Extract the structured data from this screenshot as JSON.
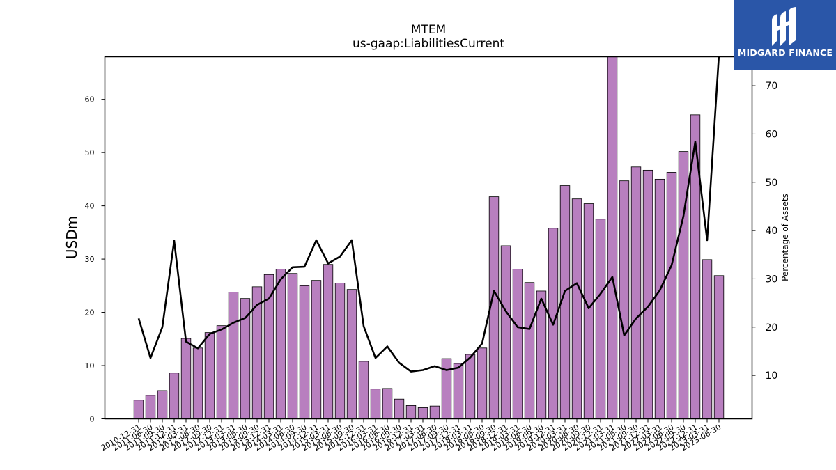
{
  "brand": {
    "name": "MIDGARD FINANCE",
    "logo_icon": "midgard-logo-icon",
    "color": "#2a56a8"
  },
  "chart_data": {
    "type": "bar",
    "title": "MTEM",
    "subtitle": "us-gaap:LiabilitiesCurrent",
    "ylabel": "USDm",
    "y2label": "Percentage of Assets",
    "ylim": [
      0,
      68
    ],
    "y2lim": [
      1,
      76
    ],
    "yticks": [
      0,
      10,
      20,
      30,
      40,
      50,
      60
    ],
    "y2ticks": [
      10,
      20,
      30,
      40,
      50,
      60,
      70
    ],
    "bar_color": "#b87fbf",
    "line_color": "#000000",
    "categories": [
      "2010-12-31",
      "2011-06-30",
      "2011-09-30",
      "2011-12-31",
      "2012-03-31",
      "2012-06-30",
      "2012-09-30",
      "2012-12-31",
      "2013-03-31",
      "2013-06-30",
      "2013-09-30",
      "2013-12-31",
      "2014-03-31",
      "2014-06-30",
      "2014-09-30",
      "2014-12-31",
      "2015-03-31",
      "2015-06-30",
      "2015-09-30",
      "2015-12-31",
      "2016-03-31",
      "2016-06-30",
      "2016-09-30",
      "2016-12-31",
      "2017-03-31",
      "2017-06-30",
      "2017-09-30",
      "2017-12-31",
      "2018-03-31",
      "2018-06-30",
      "2018-09-30",
      "2018-12-31",
      "2019-03-31",
      "2019-06-30",
      "2019-09-30",
      "2019-12-31",
      "2020-03-31",
      "2020-06-30",
      "2020-09-30",
      "2020-12-31",
      "2021-03-31",
      "2021-06-30",
      "2021-09-30",
      "2021-12-31",
      "2022-03-31",
      "2022-06-30",
      "2022-09-30",
      "2022-12-31",
      "2023-03-31",
      "2023-06-30"
    ],
    "series": [
      {
        "name": "",
        "type": "bar",
        "values": [
          3.5,
          4.4,
          5.3,
          8.6,
          15.1,
          13.3,
          16.2,
          17.5,
          23.8,
          22.6,
          24.8,
          27.1,
          28.1,
          27.3,
          25.0,
          26.0,
          29.0,
          25.5,
          24.3,
          10.8,
          5.6,
          5.7,
          3.7,
          2.5,
          2.1,
          2.4,
          11.3,
          10.4,
          12.1,
          13.3,
          41.7,
          32.5,
          28.1,
          25.6,
          24.0,
          35.8,
          43.8,
          41.3,
          40.4,
          37.5,
          68.0,
          44.7,
          47.3,
          46.7,
          45.0,
          46.3,
          50.2,
          57.1,
          29.9,
          26.9
        ]
      },
      {
        "name": "",
        "type": "line",
        "axis": "right",
        "values": [
          21.8,
          13.6,
          20.0,
          37.9,
          17.0,
          15.6,
          18.6,
          19.5,
          20.9,
          21.9,
          24.6,
          25.9,
          29.9,
          32.4,
          32.5,
          38.0,
          33.2,
          34.6,
          38.0,
          20.2,
          13.6,
          16.0,
          12.6,
          10.8,
          11.1,
          11.9,
          11.1,
          11.6,
          13.7,
          16.6,
          27.5,
          23.3,
          20.0,
          19.6,
          25.9,
          20.5,
          27.5,
          29.1,
          23.9,
          26.9,
          30.4,
          18.3,
          21.8,
          24.2,
          27.6,
          32.8,
          43.0,
          58.4,
          38.0,
          76.5
        ]
      }
    ]
  }
}
